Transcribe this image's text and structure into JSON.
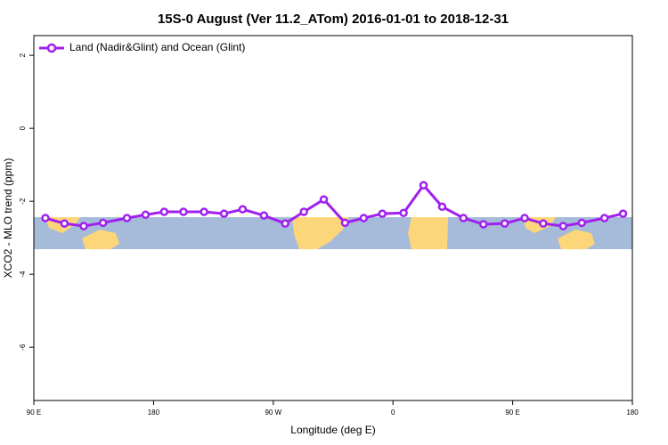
{
  "chart_data": {
    "type": "line",
    "title": "15S-0 August (Ver 11.2_ATom)   2016-01-01 to 2018-12-31",
    "x_label": "Longitude (deg E)",
    "y_label": "XCO2 - MLO trend (ppm)",
    "xlim": [
      90,
      540
    ],
    "xticks": [
      {
        "value": 90,
        "label": "90 E"
      },
      180,
      {
        "value": 270,
        "label": "90 W"
      },
      {
        "value": 360,
        "label": "0"
      },
      {
        "value": 450,
        "label": "90 E"
      },
      {
        "value": 540,
        "label": "180"
      }
    ],
    "ylim": [
      -7.46,
      2.54
    ],
    "yticks": [
      2,
      0,
      -2,
      -4,
      -6
    ],
    "legend_position": "top-left",
    "x": [
      98.7,
      113,
      127.5,
      142,
      160,
      174,
      188,
      202.5,
      218,
      233,
      247,
      263,
      279,
      293,
      308,
      324,
      338,
      352,
      368,
      383,
      397,
      413,
      428,
      444,
      459,
      473,
      488,
      502,
      519,
      533
    ],
    "series": [
      {
        "name": "Land (Nadir&Glint) and Ocean (Glint)",
        "color": "#a020f0",
        "values": [
          -2.46,
          -2.61,
          -2.68,
          -2.59,
          -2.46,
          -2.37,
          -2.29,
          -2.29,
          -2.29,
          -2.34,
          -2.22,
          -2.39,
          -2.61,
          -2.29,
          -1.95,
          -2.59,
          -2.46,
          -2.34,
          -2.32,
          -1.56,
          -2.15,
          -2.46,
          -2.63,
          -2.61,
          -2.46,
          -2.61,
          -2.68,
          -2.59,
          -2.46,
          -2.34
        ]
      }
    ]
  }
}
